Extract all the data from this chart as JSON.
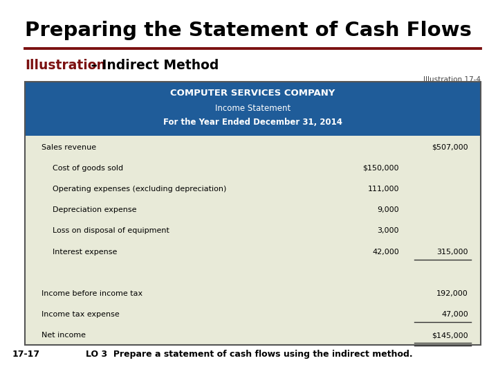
{
  "main_title": "Preparing the Statement of Cash Flows",
  "subtitle_red": "Illustration",
  "subtitle_black": " – Indirect Method",
  "illustration_ref": "Illustration 17-4",
  "company_name": "COMPUTER SERVICES COMPANY",
  "statement_title": "Income Statement",
  "statement_period": "For the Year Ended December 31, 2014",
  "rows": [
    {
      "label": "Sales revenue",
      "col1": "",
      "col2": "$507,000",
      "indent": 1
    },
    {
      "label": "Cost of goods sold",
      "col1": "$150,000",
      "col2": "",
      "indent": 2
    },
    {
      "label": "Operating expenses (excluding depreciation)",
      "col1": "111,000",
      "col2": "",
      "indent": 2
    },
    {
      "label": "Depreciation expense",
      "col1": "9,000",
      "col2": "",
      "indent": 2
    },
    {
      "label": "Loss on disposal of equipment",
      "col1": "3,000",
      "col2": "",
      "indent": 2
    },
    {
      "label": "Interest expense",
      "col1": "42,000",
      "col2": "315,000",
      "indent": 2
    },
    {
      "label": "",
      "col1": "",
      "col2": "",
      "indent": 0
    },
    {
      "label": "Income before income tax",
      "col1": "",
      "col2": "192,000",
      "indent": 1
    },
    {
      "label": "Income tax expense",
      "col1": "",
      "col2": "47,000",
      "indent": 1
    },
    {
      "label": "Net income",
      "col1": "",
      "col2": "$145,000",
      "indent": 1
    }
  ],
  "underline_rows": [
    5,
    8,
    9
  ],
  "double_underline_rows": [
    9
  ],
  "footer_left": "17-17",
  "footer_right": "LO 3  Prepare a statement of cash flows using the indirect method.",
  "bg_color": "#ffffff",
  "header_bg": "#1F5C99",
  "header_text_color": "#ffffff",
  "table_bg": "#E8EAD8",
  "border_color": "#555555",
  "title_color": "#000000",
  "subtitle_red_color": "#7B1010",
  "subtitle_black_color": "#000000",
  "separator_color": "#7B1010",
  "row_text_color": "#000000",
  "footer_color": "#000000"
}
